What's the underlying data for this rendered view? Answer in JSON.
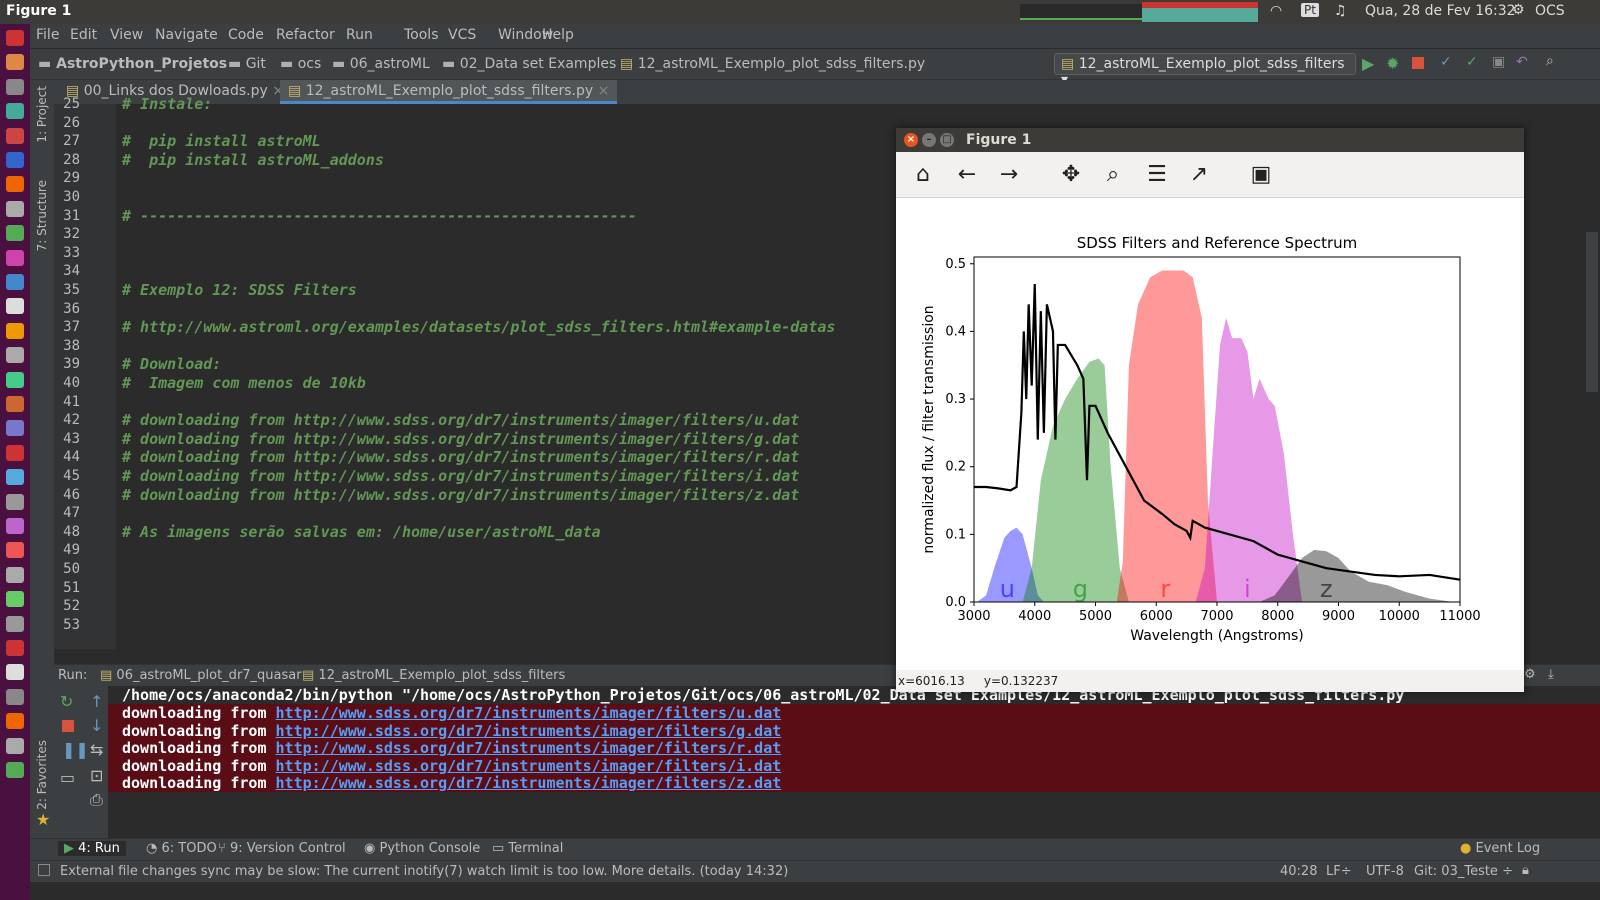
{
  "os": {
    "window_title": "Figure 1",
    "clock": "Qua, 28 de Fev 16:32",
    "user": "OCS",
    "keyboard": "Pt"
  },
  "menu": [
    "File",
    "Edit",
    "View",
    "Navigate",
    "Code",
    "Refactor",
    "Run",
    "Tools",
    "VCS",
    "Window",
    "Help"
  ],
  "breadcrumb": [
    "AstroPython_Projetos",
    "Git",
    "ocs",
    "06_astroML",
    "02_Data set Examples",
    "12_astroML_Exemplo_plot_sdss_filters.py"
  ],
  "run_config": "12_astroML_Exemplo_plot_sdss_filters",
  "tabs": [
    "00_Links dos Dowloads.py",
    "12_astroML_Exemplo_plot_sdss_filters.py"
  ],
  "side_tools": {
    "project": "1: Project",
    "structure": "7: Structure",
    "favorites": "2: Favorites"
  },
  "editor": {
    "lines": [
      {
        "n": "25",
        "t": "# Instale:"
      },
      {
        "n": "26",
        "t": ""
      },
      {
        "n": "27",
        "t": "#  pip install astroML"
      },
      {
        "n": "28",
        "t": "#  pip install astroML_addons"
      },
      {
        "n": "29",
        "t": ""
      },
      {
        "n": "30",
        "t": ""
      },
      {
        "n": "31",
        "t": "# -------------------------------------------------------"
      },
      {
        "n": "32",
        "t": ""
      },
      {
        "n": "33",
        "t": ""
      },
      {
        "n": "34",
        "t": ""
      },
      {
        "n": "35",
        "t": "# Exemplo 12: SDSS Filters"
      },
      {
        "n": "36",
        "t": ""
      },
      {
        "n": "37",
        "t": "# http://www.astroml.org/examples/datasets/plot_sdss_filters.html#example-datas"
      },
      {
        "n": "38",
        "t": ""
      },
      {
        "n": "39",
        "t": "# Download:"
      },
      {
        "n": "40",
        "t": "#  Imagem com menos de 10kb"
      },
      {
        "n": "41",
        "t": ""
      },
      {
        "n": "42",
        "t": "# downloading from http://www.sdss.org/dr7/instruments/imager/filters/u.dat"
      },
      {
        "n": "43",
        "t": "# downloading from http://www.sdss.org/dr7/instruments/imager/filters/g.dat"
      },
      {
        "n": "44",
        "t": "# downloading from http://www.sdss.org/dr7/instruments/imager/filters/r.dat"
      },
      {
        "n": "45",
        "t": "# downloading from http://www.sdss.org/dr7/instruments/imager/filters/i.dat"
      },
      {
        "n": "46",
        "t": "# downloading from http://www.sdss.org/dr7/instruments/imager/filters/z.dat"
      },
      {
        "n": "47",
        "t": ""
      },
      {
        "n": "48",
        "t": "# As imagens serão salvas em: /home/user/astroML_data"
      },
      {
        "n": "49",
        "t": ""
      },
      {
        "n": "50",
        "t": ""
      },
      {
        "n": "51",
        "t": ""
      },
      {
        "n": "52",
        "t": ""
      },
      {
        "n": "53",
        "t": ""
      }
    ]
  },
  "run_panel": {
    "label": "Run:",
    "tabs": [
      "06_astroML_plot_dr7_quasar",
      "12_astroML_Exemplo_plot_sdss_filters"
    ],
    "command": "/home/ocs/anaconda2/bin/python \"/home/ocs/AstroPython_Projetos/Git/ocs/06_astroML/02_Data set Examples/12_astroML_Exemplo_plot_sdss_filters.py",
    "prefix": "downloading from ",
    "urls": [
      "http://www.sdss.org/dr7/instruments/imager/filters/u.dat",
      "http://www.sdss.org/dr7/instruments/imager/filters/g.dat",
      "http://www.sdss.org/dr7/instruments/imager/filters/r.dat",
      "http://www.sdss.org/dr7/instruments/imager/filters/i.dat",
      "http://www.sdss.org/dr7/instruments/imager/filters/z.dat"
    ]
  },
  "bottom_tabs": [
    "4: Run",
    "6: TODO",
    "9: Version Control",
    "Python Console",
    "Terminal"
  ],
  "event_log": "Event Log",
  "status": {
    "message": "External file changes sync may be slow: The current inotify(7) watch limit is too low. More details. (today 14:32)",
    "position": "40:28",
    "line_sep": "LF÷",
    "encoding": "UTF-8",
    "vcs": "Git: 03_Teste ÷"
  },
  "figure": {
    "title": "Figure 1",
    "coords": "x=6016.13     y=0.132237"
  },
  "chart_data": {
    "type": "area",
    "title": "SDSS Filters and Reference Spectrum",
    "xlabel": "Wavelength (Angstroms)",
    "ylabel": "normalized flux / filter transmission",
    "xlim": [
      3000,
      11000
    ],
    "ylim": [
      0,
      0.51
    ],
    "xticks": [
      "3000",
      "4000",
      "5000",
      "6000",
      "7000",
      "8000",
      "9000",
      "10000",
      "11000"
    ],
    "yticks": [
      "0.0",
      "0.1",
      "0.2",
      "0.3",
      "0.4",
      "0.5"
    ],
    "filters": [
      {
        "name": "u",
        "color": "#0000ff",
        "label_x": 3550,
        "points": [
          [
            3050,
            0
          ],
          [
            3200,
            0.01
          ],
          [
            3350,
            0.055
          ],
          [
            3500,
            0.095
          ],
          [
            3600,
            0.105
          ],
          [
            3700,
            0.11
          ],
          [
            3800,
            0.1
          ],
          [
            3950,
            0.05
          ],
          [
            4050,
            0.01
          ],
          [
            4150,
            0
          ]
        ]
      },
      {
        "name": "g",
        "color": "#008000",
        "label_x": 4750,
        "points": [
          [
            3800,
            0
          ],
          [
            3950,
            0.05
          ],
          [
            4100,
            0.18
          ],
          [
            4300,
            0.26
          ],
          [
            4500,
            0.3
          ],
          [
            4700,
            0.33
          ],
          [
            4900,
            0.355
          ],
          [
            5050,
            0.36
          ],
          [
            5150,
            0.35
          ],
          [
            5250,
            0.2
          ],
          [
            5400,
            0.05
          ],
          [
            5550,
            0
          ]
        ]
      },
      {
        "name": "r",
        "color": "#ff0000",
        "label_x": 6150,
        "points": [
          [
            5350,
            0
          ],
          [
            5450,
            0.06
          ],
          [
            5550,
            0.35
          ],
          [
            5700,
            0.44
          ],
          [
            5900,
            0.48
          ],
          [
            6100,
            0.49
          ],
          [
            6300,
            0.49
          ],
          [
            6450,
            0.49
          ],
          [
            6600,
            0.48
          ],
          [
            6750,
            0.42
          ],
          [
            6850,
            0.15
          ],
          [
            7000,
            0
          ]
        ]
      },
      {
        "name": "i",
        "color": "#c000c0",
        "label_x": 7500,
        "points": [
          [
            6650,
            0
          ],
          [
            6800,
            0.05
          ],
          [
            6950,
            0.25
          ],
          [
            7050,
            0.38
          ],
          [
            7150,
            0.42
          ],
          [
            7250,
            0.39
          ],
          [
            7400,
            0.39
          ],
          [
            7500,
            0.37
          ],
          [
            7600,
            0.3
          ],
          [
            7700,
            0.33
          ],
          [
            7850,
            0.3
          ],
          [
            7950,
            0.29
          ],
          [
            8100,
            0.22
          ],
          [
            8250,
            0.1
          ],
          [
            8400,
            0
          ]
        ]
      },
      {
        "name": "z",
        "color": "#000000",
        "label_x": 8800,
        "points": [
          [
            7700,
            0
          ],
          [
            7950,
            0.01
          ],
          [
            8200,
            0.04
          ],
          [
            8400,
            0.065
          ],
          [
            8600,
            0.077
          ],
          [
            8800,
            0.075
          ],
          [
            9000,
            0.065
          ],
          [
            9200,
            0.045
          ],
          [
            9500,
            0.03
          ],
          [
            9800,
            0.025
          ],
          [
            10100,
            0.015
          ],
          [
            10500,
            0.005
          ],
          [
            10900,
            0
          ]
        ]
      }
    ],
    "spectrum": [
      [
        3000,
        0.17
      ],
      [
        3200,
        0.17
      ],
      [
        3400,
        0.168
      ],
      [
        3600,
        0.165
      ],
      [
        3700,
        0.17
      ],
      [
        3780,
        0.28
      ],
      [
        3820,
        0.4
      ],
      [
        3860,
        0.3
      ],
      [
        3900,
        0.44
      ],
      [
        3950,
        0.32
      ],
      [
        4000,
        0.47
      ],
      [
        4050,
        0.24
      ],
      [
        4100,
        0.43
      ],
      [
        4150,
        0.25
      ],
      [
        4200,
        0.44
      ],
      [
        4300,
        0.4
      ],
      [
        4340,
        0.24
      ],
      [
        4380,
        0.38
      ],
      [
        4500,
        0.38
      ],
      [
        4700,
        0.35
      ],
      [
        4800,
        0.33
      ],
      [
        4860,
        0.18
      ],
      [
        4900,
        0.29
      ],
      [
        5000,
        0.29
      ],
      [
        5200,
        0.25
      ],
      [
        5500,
        0.2
      ],
      [
        5800,
        0.15
      ],
      [
        6100,
        0.13
      ],
      [
        6300,
        0.115
      ],
      [
        6500,
        0.105
      ],
      [
        6560,
        0.095
      ],
      [
        6600,
        0.12
      ],
      [
        6800,
        0.11
      ],
      [
        7200,
        0.1
      ],
      [
        7600,
        0.09
      ],
      [
        8000,
        0.07
      ],
      [
        8400,
        0.06
      ],
      [
        8800,
        0.05
      ],
      [
        9200,
        0.045
      ],
      [
        9600,
        0.04
      ],
      [
        10000,
        0.038
      ],
      [
        10500,
        0.04
      ],
      [
        11000,
        0.033
      ]
    ]
  }
}
